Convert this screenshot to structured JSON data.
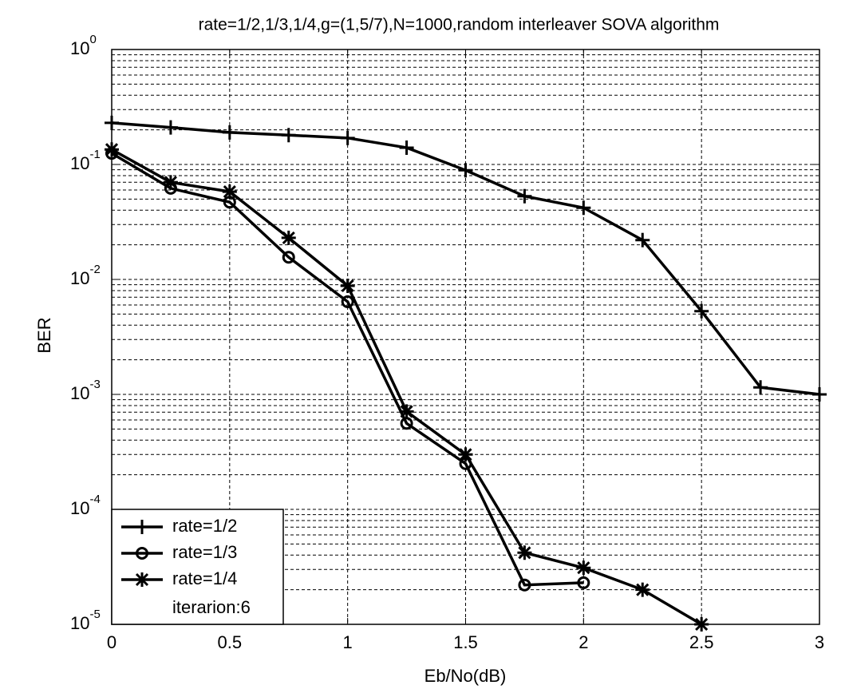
{
  "chart_data": {
    "type": "line",
    "title": "rate=1/2,1/3,1/4,g=(1,5/7),N=1000,random interleaver SOVA algorithm",
    "xlabel": "Eb/No(dB)",
    "ylabel": "BER",
    "xlim": [
      0,
      3
    ],
    "xticks": [
      0,
      0.5,
      1,
      1.5,
      2,
      2.5,
      3
    ],
    "ylim": [
      1e-05,
      1
    ],
    "yscale": "log",
    "yticks": [
      {
        "value": 1e-05,
        "label": "10^-5"
      },
      {
        "value": 0.0001,
        "label": "10^-4"
      },
      {
        "value": 0.001,
        "label": "10^-3"
      },
      {
        "value": 0.01,
        "label": "10^-2"
      },
      {
        "value": 0.1,
        "label": "10^-1"
      },
      {
        "value": 1,
        "label": "10^0"
      }
    ],
    "grid": true,
    "minor_grid": true,
    "legend_loc": "lower left",
    "legend_note": "iterarion:6",
    "series": [
      {
        "name": "rate=1/2",
        "color": "#000000",
        "marker": "plus",
        "x": [
          0,
          0.25,
          0.5,
          0.75,
          1,
          1.25,
          1.5,
          1.75,
          2,
          2.25,
          2.5,
          2.75,
          3
        ],
        "values": [
          0.23,
          0.21,
          0.19,
          0.18,
          0.17,
          0.14,
          0.089,
          0.053,
          0.042,
          0.022,
          0.0053,
          0.00115,
          0.001
        ]
      },
      {
        "name": "rate=1/3",
        "color": "#000000",
        "marker": "circle",
        "x": [
          0,
          0.25,
          0.5,
          0.75,
          1,
          1.25,
          1.5,
          1.75,
          2
        ],
        "values": [
          0.125,
          0.062,
          0.047,
          0.0156,
          0.0064,
          0.00056,
          0.00025,
          2.2e-05,
          2.3e-05
        ]
      },
      {
        "name": "rate=1/4",
        "color": "#000000",
        "marker": "star",
        "x": [
          0,
          0.25,
          0.5,
          0.75,
          1,
          1.25,
          1.5,
          1.75,
          2,
          2.25,
          2.5
        ],
        "values": [
          0.135,
          0.07,
          0.058,
          0.023,
          0.0088,
          0.00071,
          0.0003,
          4.2e-05,
          3.1e-05,
          2e-05,
          1e-05
        ]
      }
    ]
  }
}
